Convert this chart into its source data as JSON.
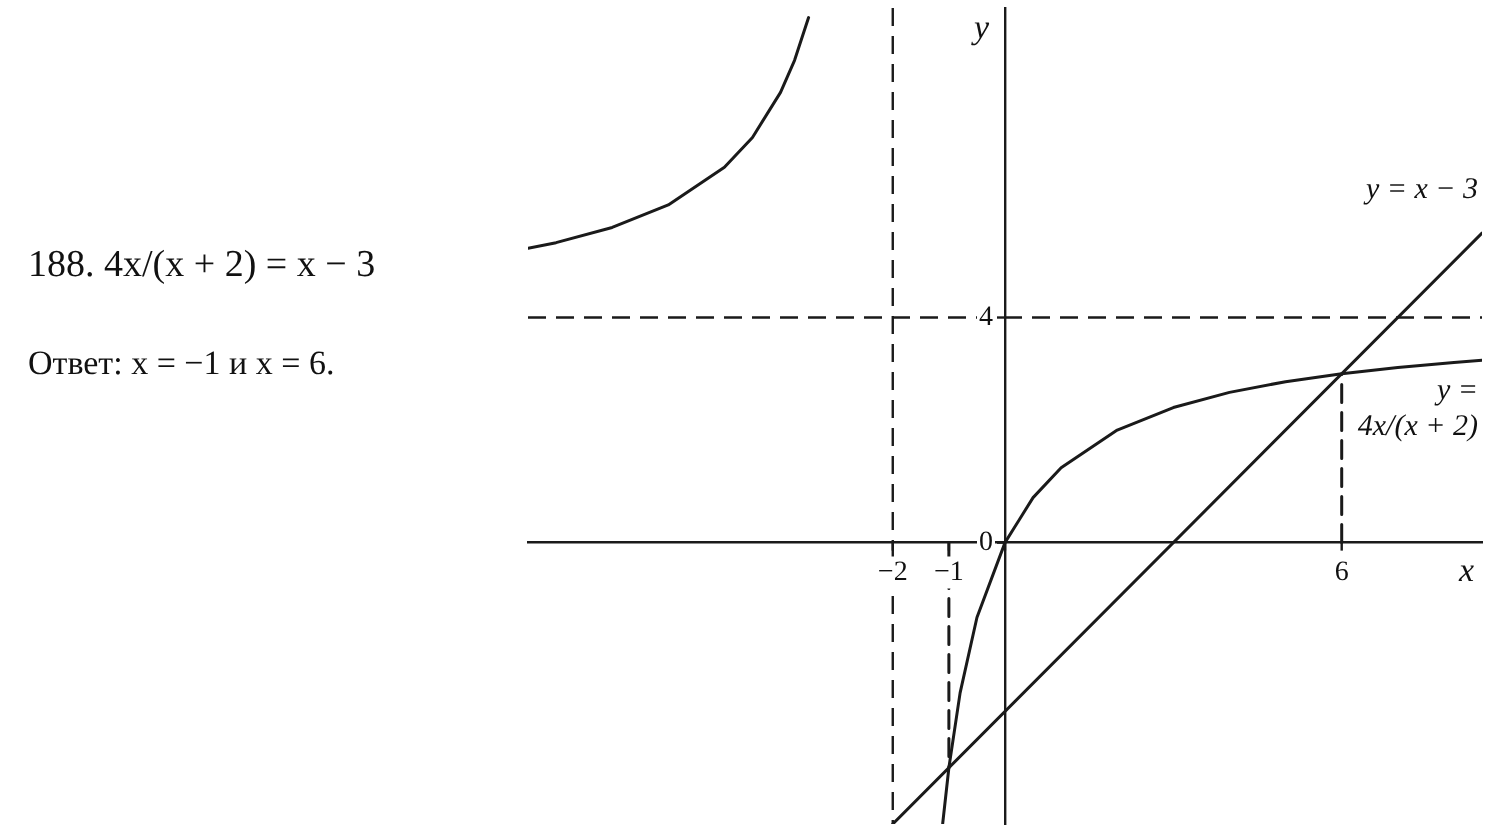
{
  "chart_data": {
    "type": "line",
    "title": "188. 4x/(x + 2) = x − 3",
    "annotations": [
      "Ответ: x = −1 и x = 6."
    ],
    "xlabel": "x",
    "ylabel": "y",
    "xlim": [
      -8.5,
      8.5
    ],
    "ylim": [
      -5,
      9.5
    ],
    "xticks": [
      -2,
      -1,
      {
        "value": 0,
        "label": null
      },
      6
    ],
    "yticks": [
      0,
      4
    ],
    "grid": false,
    "marker": "none",
    "line_style": "solid",
    "ref_lines": [
      {
        "axis": "x",
        "value": -2,
        "line_style": "dashed"
      },
      {
        "axis": "y",
        "value": 4,
        "line_style": "dashed"
      }
    ],
    "series": [
      {
        "color": "#1a1a1a",
        "x": [
          -8.5,
          -8,
          -7,
          -6,
          -5,
          -4.5,
          -4,
          -3.75,
          -3.5
        ],
        "values": [
          5.23,
          5.33,
          5.6,
          6,
          6.67,
          7.2,
          8,
          8.57,
          9.33
        ]
      },
      {
        "name": "y = 4x/(x + 2)",
        "color": "#1a1a1a",
        "x": [
          -1.11,
          -1,
          -0.8,
          -0.5,
          0,
          0.5,
          1,
          2,
          3,
          4,
          5,
          6,
          7,
          8,
          8.5
        ],
        "values": [
          -4.99,
          -4,
          -2.67,
          -1.33,
          0,
          0.8,
          1.33,
          2,
          2.4,
          2.67,
          2.86,
          3,
          3.11,
          3.2,
          3.24
        ]
      },
      {
        "name": "y = x − 3",
        "color": "#1a1a1a",
        "x": [
          -2,
          8.5
        ],
        "values": [
          -5,
          5.5
        ]
      },
      {
        "color": "#1a1a1a",
        "line_style": "dashed",
        "x": [
          -1,
          -1
        ],
        "values": [
          0,
          -4
        ]
      },
      {
        "color": "#1a1a1a",
        "line_style": "dashed",
        "x": [
          6,
          6
        ],
        "values": [
          0,
          3
        ]
      }
    ]
  }
}
